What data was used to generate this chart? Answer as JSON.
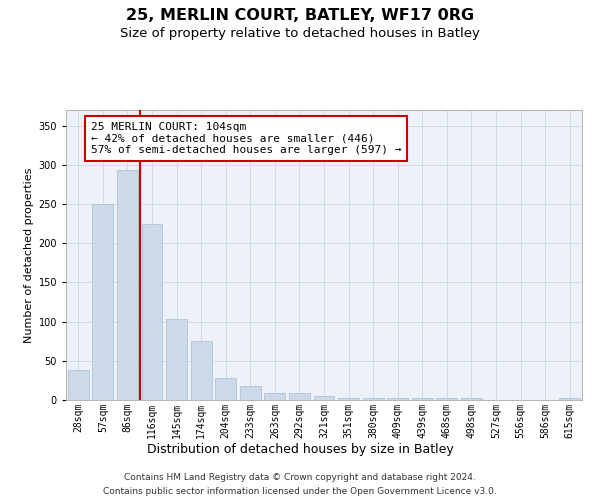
{
  "title1": "25, MERLIN COURT, BATLEY, WF17 0RG",
  "title2": "Size of property relative to detached houses in Batley",
  "xlabel": "Distribution of detached houses by size in Batley",
  "ylabel": "Number of detached properties",
  "categories": [
    "28sqm",
    "57sqm",
    "86sqm",
    "116sqm",
    "145sqm",
    "174sqm",
    "204sqm",
    "233sqm",
    "263sqm",
    "292sqm",
    "321sqm",
    "351sqm",
    "380sqm",
    "409sqm",
    "439sqm",
    "468sqm",
    "498sqm",
    "527sqm",
    "556sqm",
    "586sqm",
    "615sqm"
  ],
  "values": [
    38,
    250,
    293,
    225,
    103,
    75,
    28,
    18,
    9,
    9,
    5,
    3,
    3,
    2,
    2,
    3,
    2,
    0,
    0,
    0,
    2
  ],
  "bar_color": "#ccd9e8",
  "bar_edge_color": "#aabbd0",
  "vline_idx": 2.5,
  "vline_color": "#cc0000",
  "annotation_line1": "25 MERLIN COURT: 104sqm",
  "annotation_line2": "← 42% of detached houses are smaller (446)",
  "annotation_line3": "57% of semi-detached houses are larger (597) →",
  "annotation_box_facecolor": "white",
  "annotation_box_edgecolor": "#cc0000",
  "ylim": [
    0,
    370
  ],
  "yticks": [
    0,
    50,
    100,
    150,
    200,
    250,
    300,
    350
  ],
  "grid_color": "#ccd6e8",
  "plot_bg_color": "#edf2f8",
  "footer_line1": "Contains HM Land Registry data © Crown copyright and database right 2024.",
  "footer_line2": "Contains public sector information licensed under the Open Government Licence v3.0.",
  "title1_fontsize": 11.5,
  "title2_fontsize": 9.5,
  "xlabel_fontsize": 9,
  "ylabel_fontsize": 8,
  "tick_fontsize": 7,
  "annotation_fontsize": 8,
  "footer_fontsize": 6.5
}
